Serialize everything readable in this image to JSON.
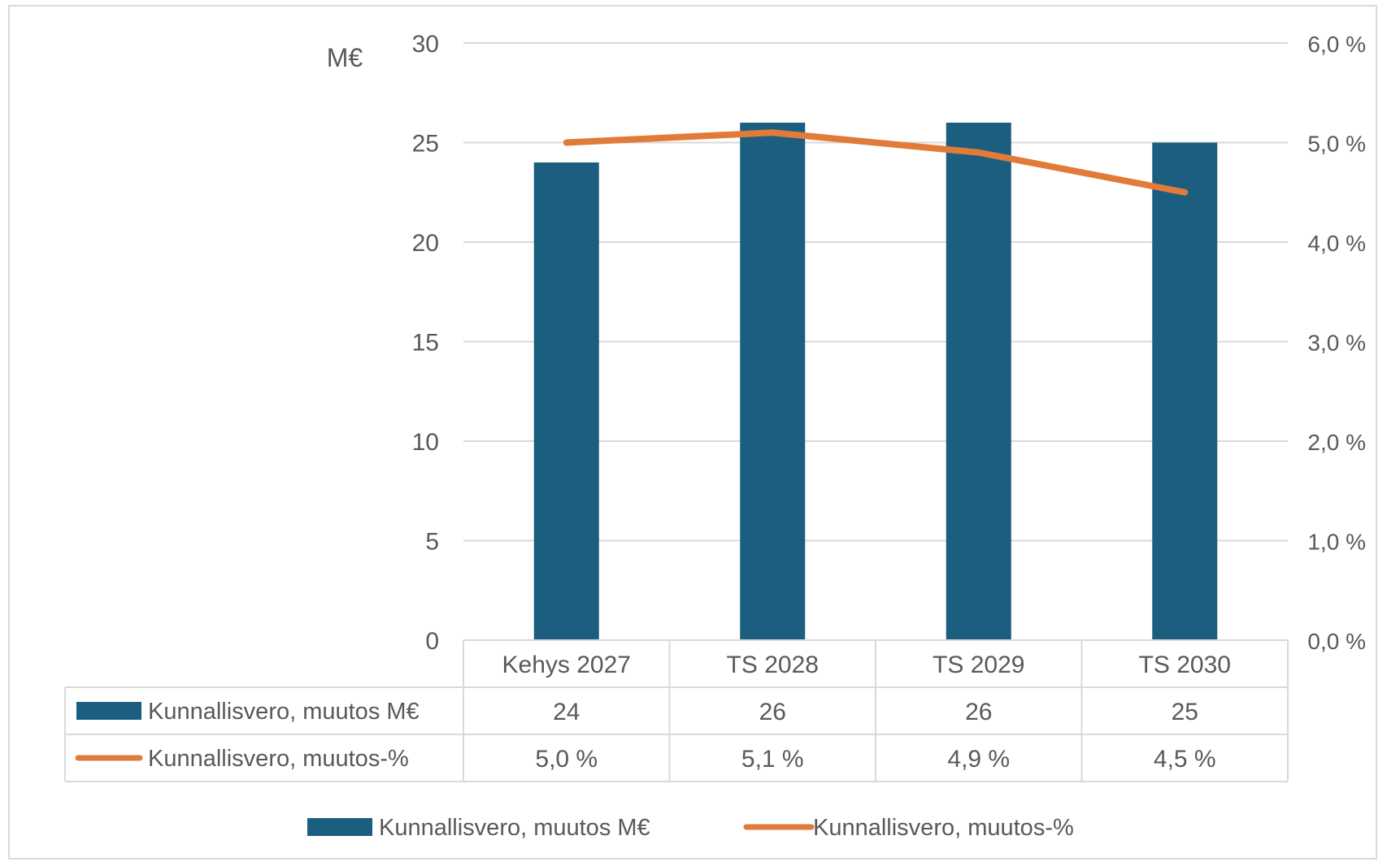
{
  "chart_data": {
    "type": "bar",
    "categories": [
      "Kehys 2027",
      "TS 2028",
      "TS 2029",
      "TS 2030"
    ],
    "ylabel": "M€",
    "ylim": [
      0,
      30
    ],
    "y_ticks": [
      "0",
      "5",
      "10",
      "15",
      "20",
      "25",
      "30"
    ],
    "y2lim": [
      0,
      6.0
    ],
    "y2_ticks": [
      "0,0 %",
      "1,0 %",
      "2,0 %",
      "3,0 %",
      "4,0 %",
      "5,0 %",
      "6,0 %"
    ],
    "grid": true,
    "legend": "bottom",
    "series": [
      {
        "name": "Kunnallisvero, muutos M€",
        "type": "bar",
        "axis": "left",
        "color": "#1b5e80",
        "values": [
          24,
          26,
          26,
          25
        ],
        "labels": [
          "24",
          "26",
          "26",
          "25"
        ]
      },
      {
        "name": "Kunnallisvero, muutos-%",
        "type": "line",
        "axis": "right",
        "color": "#e07b39",
        "values": [
          5.0,
          5.1,
          4.9,
          4.5
        ],
        "labels": [
          "5,0 %",
          "5,1 %",
          "4,9 %",
          "4,5 %"
        ]
      }
    ]
  }
}
